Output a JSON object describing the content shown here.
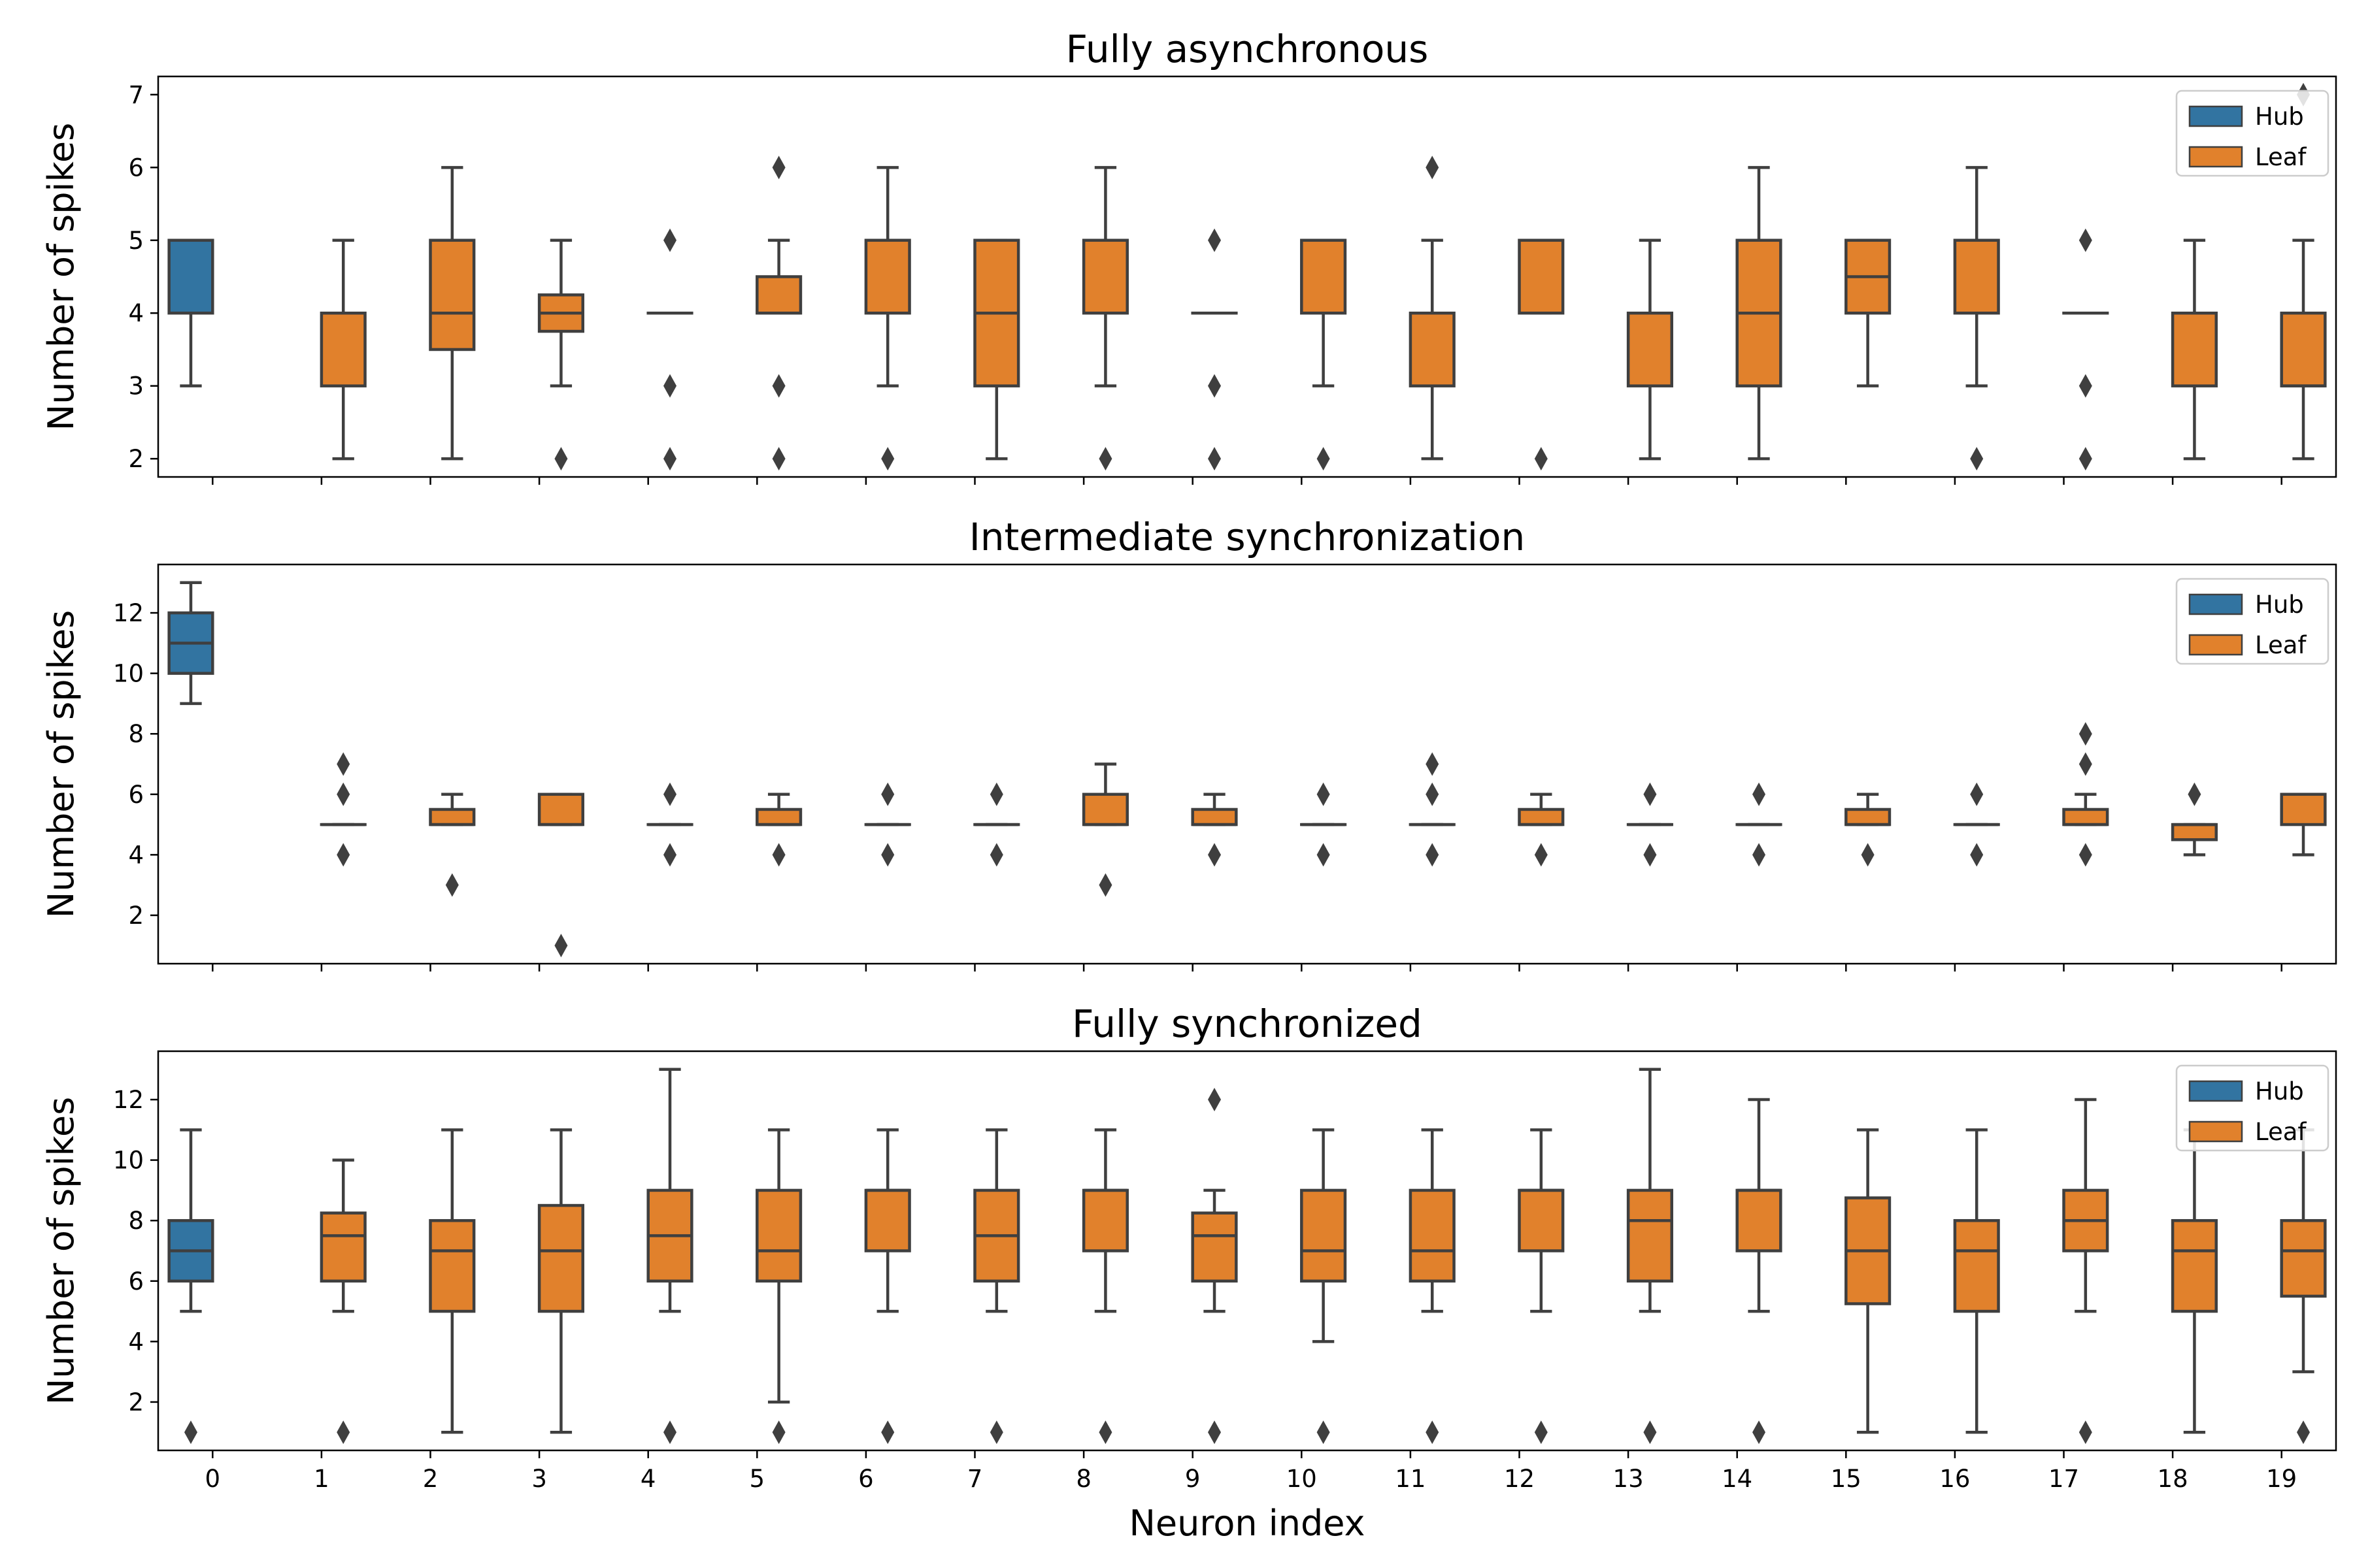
{
  "colors": {
    "hub": "#3274a1",
    "leaf": "#e1812c",
    "line": "#3f3f3f"
  },
  "xlabel": "Neuron index",
  "x_ticks": [
    "0",
    "1",
    "2",
    "3",
    "4",
    "5",
    "6",
    "7",
    "8",
    "9",
    "10",
    "11",
    "12",
    "13",
    "14",
    "15",
    "16",
    "17",
    "18",
    "19"
  ],
  "legend": {
    "hub": "Hub",
    "leaf": "Leaf"
  },
  "chart_data": [
    {
      "type": "box",
      "title": "Fully asynchronous",
      "ylabel": "Number of spikes",
      "ylim": [
        1.75,
        7.25
      ],
      "yticks": [
        2,
        3,
        4,
        5,
        6,
        7
      ],
      "legend_position": "upper-right",
      "boxes": [
        {
          "neuron": 0,
          "group": "Hub",
          "q1": 4,
          "median": 5,
          "q3": 5,
          "whislo": 3,
          "whishi": 5,
          "outliers": []
        },
        {
          "neuron": 1,
          "group": "Leaf",
          "q1": 3,
          "median": 4,
          "q3": 4,
          "whislo": 2,
          "whishi": 5,
          "outliers": []
        },
        {
          "neuron": 2,
          "group": "Leaf",
          "q1": 3.5,
          "median": 4,
          "q3": 5,
          "whislo": 2,
          "whishi": 6,
          "outliers": []
        },
        {
          "neuron": 3,
          "group": "Leaf",
          "q1": 3.75,
          "median": 4,
          "q3": 4.25,
          "whislo": 3,
          "whishi": 5,
          "outliers": [
            2
          ]
        },
        {
          "neuron": 4,
          "group": "Leaf",
          "q1": 4,
          "median": 4,
          "q3": 4,
          "whislo": 4,
          "whishi": 4,
          "outliers": [
            2,
            3,
            5
          ]
        },
        {
          "neuron": 5,
          "group": "Leaf",
          "q1": 4,
          "median": 4,
          "q3": 4.5,
          "whislo": 4,
          "whishi": 5,
          "outliers": [
            2,
            3,
            6
          ]
        },
        {
          "neuron": 6,
          "group": "Leaf",
          "q1": 4,
          "median": 5,
          "q3": 5,
          "whislo": 3,
          "whishi": 6,
          "outliers": [
            2
          ]
        },
        {
          "neuron": 7,
          "group": "Leaf",
          "q1": 3,
          "median": 4,
          "q3": 5,
          "whislo": 2,
          "whishi": 5,
          "outliers": []
        },
        {
          "neuron": 8,
          "group": "Leaf",
          "q1": 4,
          "median": 5,
          "q3": 5,
          "whislo": 3,
          "whishi": 6,
          "outliers": [
            2
          ]
        },
        {
          "neuron": 9,
          "group": "Leaf",
          "q1": 4,
          "median": 4,
          "q3": 4,
          "whislo": 4,
          "whishi": 4,
          "outliers": [
            2,
            3,
            5
          ]
        },
        {
          "neuron": 10,
          "group": "Leaf",
          "q1": 4,
          "median": 5,
          "q3": 5,
          "whislo": 3,
          "whishi": 5,
          "outliers": [
            2
          ]
        },
        {
          "neuron": 11,
          "group": "Leaf",
          "q1": 3,
          "median": 4,
          "q3": 4,
          "whislo": 2,
          "whishi": 5,
          "outliers": [
            6
          ]
        },
        {
          "neuron": 12,
          "group": "Leaf",
          "q1": 4,
          "median": 5,
          "q3": 5,
          "whislo": 4,
          "whishi": 5,
          "outliers": [
            2
          ]
        },
        {
          "neuron": 13,
          "group": "Leaf",
          "q1": 3,
          "median": 4,
          "q3": 4,
          "whislo": 2,
          "whishi": 5,
          "outliers": []
        },
        {
          "neuron": 14,
          "group": "Leaf",
          "q1": 3,
          "median": 4,
          "q3": 5,
          "whislo": 2,
          "whishi": 6,
          "outliers": []
        },
        {
          "neuron": 15,
          "group": "Leaf",
          "q1": 4,
          "median": 4.5,
          "q3": 5,
          "whislo": 3,
          "whishi": 5,
          "outliers": []
        },
        {
          "neuron": 16,
          "group": "Leaf",
          "q1": 4,
          "median": 5,
          "q3": 5,
          "whislo": 3,
          "whishi": 6,
          "outliers": [
            2
          ]
        },
        {
          "neuron": 17,
          "group": "Leaf",
          "q1": 4,
          "median": 4,
          "q3": 4,
          "whislo": 4,
          "whishi": 4,
          "outliers": [
            2,
            3,
            5
          ]
        },
        {
          "neuron": 18,
          "group": "Leaf",
          "q1": 3,
          "median": 4,
          "q3": 4,
          "whislo": 2,
          "whishi": 5,
          "outliers": []
        },
        {
          "neuron": 19,
          "group": "Leaf",
          "q1": 3,
          "median": 3,
          "q3": 4,
          "whislo": 2,
          "whishi": 5,
          "outliers": [
            7
          ]
        }
      ]
    },
    {
      "type": "box",
      "title": "Intermediate synchronization",
      "ylabel": "Number of spikes",
      "ylim": [
        0.4,
        13.6
      ],
      "yticks": [
        2,
        4,
        6,
        8,
        10,
        12
      ],
      "legend_position": "upper-right",
      "boxes": [
        {
          "neuron": 0,
          "group": "Hub",
          "q1": 10,
          "median": 11,
          "q3": 12,
          "whislo": 9,
          "whishi": 13,
          "outliers": []
        },
        {
          "neuron": 1,
          "group": "Leaf",
          "q1": 5,
          "median": 5,
          "q3": 5,
          "whislo": 5,
          "whishi": 5,
          "outliers": [
            4,
            6,
            7
          ]
        },
        {
          "neuron": 2,
          "group": "Leaf",
          "q1": 5,
          "median": 5,
          "q3": 5.5,
          "whislo": 5,
          "whishi": 6,
          "outliers": [
            3
          ]
        },
        {
          "neuron": 3,
          "group": "Leaf",
          "q1": 5,
          "median": 5,
          "q3": 6,
          "whislo": 5,
          "whishi": 6,
          "outliers": [
            1
          ]
        },
        {
          "neuron": 4,
          "group": "Leaf",
          "q1": 5,
          "median": 5,
          "q3": 5,
          "whislo": 5,
          "whishi": 5,
          "outliers": [
            4,
            6
          ]
        },
        {
          "neuron": 5,
          "group": "Leaf",
          "q1": 5,
          "median": 5,
          "q3": 5.5,
          "whislo": 5,
          "whishi": 6,
          "outliers": [
            4
          ]
        },
        {
          "neuron": 6,
          "group": "Leaf",
          "q1": 5,
          "median": 5,
          "q3": 5,
          "whislo": 5,
          "whishi": 5,
          "outliers": [
            4,
            6
          ]
        },
        {
          "neuron": 7,
          "group": "Leaf",
          "q1": 5,
          "median": 5,
          "q3": 5,
          "whislo": 5,
          "whishi": 5,
          "outliers": [
            4,
            6
          ]
        },
        {
          "neuron": 8,
          "group": "Leaf",
          "q1": 5,
          "median": 5,
          "q3": 6,
          "whislo": 5,
          "whishi": 7,
          "outliers": [
            3
          ]
        },
        {
          "neuron": 9,
          "group": "Leaf",
          "q1": 5,
          "median": 5,
          "q3": 5.5,
          "whislo": 5,
          "whishi": 6,
          "outliers": [
            4
          ]
        },
        {
          "neuron": 10,
          "group": "Leaf",
          "q1": 5,
          "median": 5,
          "q3": 5,
          "whislo": 5,
          "whishi": 5,
          "outliers": [
            4,
            6
          ]
        },
        {
          "neuron": 11,
          "group": "Leaf",
          "q1": 5,
          "median": 5,
          "q3": 5,
          "whislo": 5,
          "whishi": 5,
          "outliers": [
            4,
            6,
            7
          ]
        },
        {
          "neuron": 12,
          "group": "Leaf",
          "q1": 5,
          "median": 5,
          "q3": 5.5,
          "whislo": 5,
          "whishi": 6,
          "outliers": [
            4
          ]
        },
        {
          "neuron": 13,
          "group": "Leaf",
          "q1": 5,
          "median": 5,
          "q3": 5,
          "whislo": 5,
          "whishi": 5,
          "outliers": [
            4,
            6
          ]
        },
        {
          "neuron": 14,
          "group": "Leaf",
          "q1": 5,
          "median": 5,
          "q3": 5,
          "whislo": 5,
          "whishi": 5,
          "outliers": [
            4,
            6
          ]
        },
        {
          "neuron": 15,
          "group": "Leaf",
          "q1": 5,
          "median": 5,
          "q3": 5.5,
          "whislo": 5,
          "whishi": 6,
          "outliers": [
            4
          ]
        },
        {
          "neuron": 16,
          "group": "Leaf",
          "q1": 5,
          "median": 5,
          "q3": 5,
          "whislo": 5,
          "whishi": 5,
          "outliers": [
            4,
            6
          ]
        },
        {
          "neuron": 17,
          "group": "Leaf",
          "q1": 5,
          "median": 5,
          "q3": 5.5,
          "whislo": 5,
          "whishi": 6,
          "outliers": [
            4,
            7,
            8
          ]
        },
        {
          "neuron": 18,
          "group": "Leaf",
          "q1": 4.5,
          "median": 5,
          "q3": 5,
          "whislo": 4,
          "whishi": 5,
          "outliers": [
            6
          ]
        },
        {
          "neuron": 19,
          "group": "Leaf",
          "q1": 5,
          "median": 6,
          "q3": 6,
          "whislo": 4,
          "whishi": 6,
          "outliers": []
        }
      ]
    },
    {
      "type": "box",
      "title": "Fully synchronized",
      "ylabel": "Number of spikes",
      "ylim": [
        0.4,
        13.6
      ],
      "yticks": [
        2,
        4,
        6,
        8,
        10,
        12
      ],
      "legend_position": "upper-right",
      "boxes": [
        {
          "neuron": 0,
          "group": "Hub",
          "q1": 6,
          "median": 7,
          "q3": 8,
          "whislo": 5,
          "whishi": 11,
          "outliers": [
            1
          ]
        },
        {
          "neuron": 1,
          "group": "Leaf",
          "q1": 6,
          "median": 7.5,
          "q3": 8.25,
          "whislo": 5,
          "whishi": 10,
          "outliers": [
            1
          ]
        },
        {
          "neuron": 2,
          "group": "Leaf",
          "q1": 5,
          "median": 7,
          "q3": 8,
          "whislo": 1,
          "whishi": 11,
          "outliers": []
        },
        {
          "neuron": 3,
          "group": "Leaf",
          "q1": 5,
          "median": 7,
          "q3": 8.5,
          "whislo": 1,
          "whishi": 11,
          "outliers": []
        },
        {
          "neuron": 4,
          "group": "Leaf",
          "q1": 6,
          "median": 7.5,
          "q3": 9,
          "whislo": 5,
          "whishi": 13,
          "outliers": [
            1
          ]
        },
        {
          "neuron": 5,
          "group": "Leaf",
          "q1": 6,
          "median": 7,
          "q3": 9,
          "whislo": 2,
          "whishi": 11,
          "outliers": [
            1
          ]
        },
        {
          "neuron": 6,
          "group": "Leaf",
          "q1": 7,
          "median": 9,
          "q3": 9,
          "whislo": 5,
          "whishi": 11,
          "outliers": [
            1
          ]
        },
        {
          "neuron": 7,
          "group": "Leaf",
          "q1": 6,
          "median": 7.5,
          "q3": 9,
          "whislo": 5,
          "whishi": 11,
          "outliers": [
            1
          ]
        },
        {
          "neuron": 8,
          "group": "Leaf",
          "q1": 7,
          "median": 9,
          "q3": 9,
          "whislo": 5,
          "whishi": 11,
          "outliers": [
            1
          ]
        },
        {
          "neuron": 9,
          "group": "Leaf",
          "q1": 6,
          "median": 7.5,
          "q3": 8.25,
          "whislo": 5,
          "whishi": 9,
          "outliers": [
            1,
            12
          ]
        },
        {
          "neuron": 10,
          "group": "Leaf",
          "q1": 6,
          "median": 7,
          "q3": 9,
          "whislo": 4,
          "whishi": 11,
          "outliers": [
            1
          ]
        },
        {
          "neuron": 11,
          "group": "Leaf",
          "q1": 6,
          "median": 7,
          "q3": 9,
          "whislo": 5,
          "whishi": 11,
          "outliers": [
            1
          ]
        },
        {
          "neuron": 12,
          "group": "Leaf",
          "q1": 7,
          "median": 9,
          "q3": 9,
          "whislo": 5,
          "whishi": 11,
          "outliers": [
            1
          ]
        },
        {
          "neuron": 13,
          "group": "Leaf",
          "q1": 6,
          "median": 8,
          "q3": 9,
          "whislo": 5,
          "whishi": 13,
          "outliers": [
            1
          ]
        },
        {
          "neuron": 14,
          "group": "Leaf",
          "q1": 7,
          "median": 9,
          "q3": 9,
          "whislo": 5,
          "whishi": 12,
          "outliers": [
            1
          ]
        },
        {
          "neuron": 15,
          "group": "Leaf",
          "q1": 5.25,
          "median": 7,
          "q3": 8.75,
          "whislo": 1,
          "whishi": 11,
          "outliers": []
        },
        {
          "neuron": 16,
          "group": "Leaf",
          "q1": 5,
          "median": 7,
          "q3": 8,
          "whislo": 1,
          "whishi": 11,
          "outliers": []
        },
        {
          "neuron": 17,
          "group": "Leaf",
          "q1": 7,
          "median": 8,
          "q3": 9,
          "whislo": 5,
          "whishi": 12,
          "outliers": [
            1
          ]
        },
        {
          "neuron": 18,
          "group": "Leaf",
          "q1": 5,
          "median": 7,
          "q3": 8,
          "whislo": 1,
          "whishi": 11,
          "outliers": []
        },
        {
          "neuron": 19,
          "group": "Leaf",
          "q1": 5.5,
          "median": 7,
          "q3": 8,
          "whislo": 3,
          "whishi": 11,
          "outliers": [
            1
          ]
        }
      ]
    }
  ]
}
